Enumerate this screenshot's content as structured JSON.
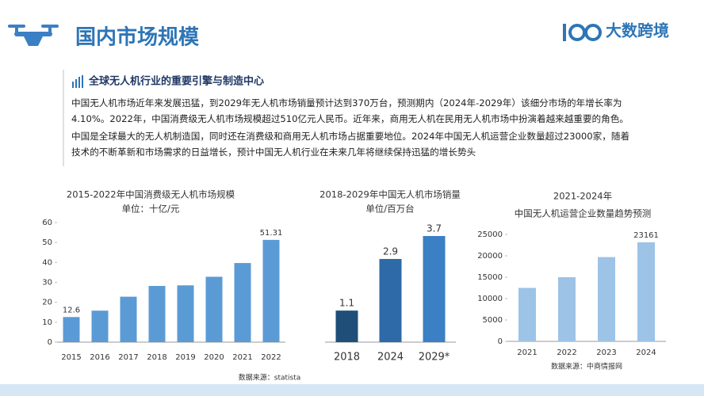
{
  "header": {
    "title": "国内市场规模",
    "logo": "大数跨境"
  },
  "section": {
    "title": "全球无人机行业的重要引擎与制造中心",
    "paragraphs": [
      "中国无人机市场近年来发展迅猛，到2029年无人机市场销量预计达到370万台，预测期内（2024年-2029年）该细分市场的年增长率为4.10%。2022年，中国消费级无人机市场规模超过510亿元人民币。近年来，商用无人机在民用无人机市场中扮演着越来越重要的角色。",
      "中国是全球最大的无人机制造国，同时还在消费级和商用无人机市场占据重要地位。2024年中国无人机运营企业数量超过23000家，随着技术的不断革新和市场需求的日益增长，预计中国无人机行业在未来几年将继续保持迅猛的增长势头"
    ]
  },
  "chart_data": [
    {
      "type": "bar",
      "title": "2015-2022年中国消费级无人机市场规模",
      "subtitle": "单位：十亿/元",
      "categories": [
        "2015",
        "2016",
        "2017",
        "2018",
        "2019",
        "2020",
        "2021",
        "2022"
      ],
      "values": [
        12.6,
        15.8,
        22.8,
        28.2,
        28.5,
        32.8,
        39.7,
        51.31
      ],
      "value_labels": [
        "12.6",
        null,
        null,
        null,
        null,
        null,
        null,
        "51.31"
      ],
      "color": "#5b9bd5",
      "ylim": [
        0,
        60
      ],
      "yticks": [
        0,
        10,
        20,
        30,
        40,
        50,
        60
      ],
      "source": "数据来源：statista"
    },
    {
      "type": "bar",
      "title": "2018-2029年中国无人机市场销量",
      "subtitle": "单位/百万台",
      "categories": [
        "2018",
        "2024",
        "2029*"
      ],
      "values": [
        1.1,
        2.9,
        3.7
      ],
      "colors": [
        "#1f4e79",
        "#2e6aa8",
        "#3b7fc4"
      ]
    },
    {
      "type": "bar",
      "title": "2021-2024年",
      "subtitle": "中国无人机运营企业数量趋势预测",
      "categories": [
        "2021",
        "2022",
        "2023",
        "2024"
      ],
      "values": [
        12500,
        15000,
        19700,
        23161
      ],
      "value_labels": [
        null,
        null,
        null,
        "23161"
      ],
      "color": "#9dc3e6",
      "ylim": [
        0,
        25000
      ],
      "yticks": [
        0,
        5000,
        10000,
        15000,
        20000,
        25000
      ],
      "source": "数据来源：中商情报网"
    }
  ]
}
